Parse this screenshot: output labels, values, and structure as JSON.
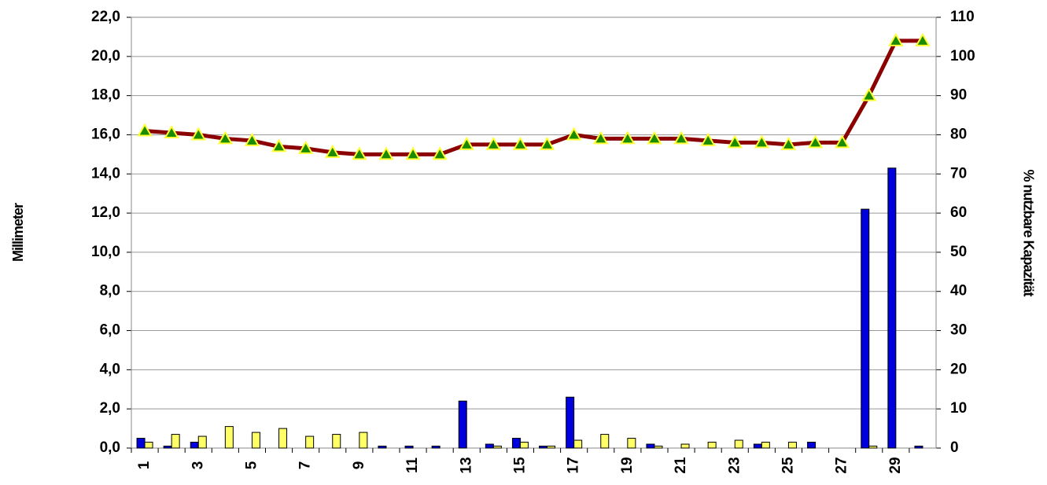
{
  "chart_data": {
    "type": "bar-line",
    "y_label": "Millimeter",
    "y2_label": "% nutzbare Kapazität",
    "categories": [
      "1",
      null,
      "3",
      null,
      "5",
      null,
      "7",
      null,
      "9",
      null,
      "11",
      null,
      "13",
      null,
      "15",
      null,
      "17",
      null,
      "19",
      null,
      "21",
      null,
      "23",
      null,
      "25",
      null,
      "27",
      null,
      "29",
      null
    ],
    "series": [
      {
        "color": "#0000dd",
        "values": [
          0.5,
          0.1,
          0.3,
          0,
          0,
          0,
          0,
          0,
          0,
          0.1,
          0.1,
          0.1,
          2.4,
          0.2,
          0.5,
          0.1,
          2.6,
          0,
          0,
          0.2,
          0,
          0,
          0,
          0.2,
          0,
          0.3,
          0,
          12.2,
          14.3,
          0.1
        ]
      },
      {
        "color": "#ffff66",
        "values": [
          0.3,
          0.7,
          0.6,
          1.1,
          0.8,
          1.0,
          0.6,
          0.7,
          0.8,
          0,
          0,
          0,
          0,
          0.1,
          0.3,
          0.1,
          0.4,
          0.7,
          0.5,
          0.1,
          0.2,
          0.3,
          0.4,
          0.3,
          0.3,
          0,
          0,
          0.1,
          0,
          0
        ]
      },
      {
        "color": "#8b0000",
        "marker_color": "#1a8a00",
        "axis": "y2",
        "values": [
          81,
          80.5,
          80,
          79,
          78.5,
          77,
          76.5,
          75.5,
          75,
          75,
          75,
          75,
          77.5,
          77.5,
          77.5,
          77.5,
          80,
          79,
          79,
          79,
          79,
          78.5,
          78,
          78,
          77.5,
          78,
          78,
          90,
          104,
          104
        ]
      }
    ],
    "ylim": [
      0,
      22
    ],
    "yticks": [
      {
        "value": 0,
        "label": "0,0"
      },
      {
        "value": 2,
        "label": "2,0"
      },
      {
        "value": 4,
        "label": "4,0"
      },
      {
        "value": 6,
        "label": "6,0"
      },
      {
        "value": 8,
        "label": "8,0"
      },
      {
        "value": 10,
        "label": "10,0"
      },
      {
        "value": 12,
        "label": "12,0"
      },
      {
        "value": 14,
        "label": "14,0"
      },
      {
        "value": 16,
        "label": "16,0"
      },
      {
        "value": 18,
        "label": "18,0"
      },
      {
        "value": 20,
        "label": "20,0"
      },
      {
        "value": 22,
        "label": "22,0"
      }
    ],
    "y2lim": [
      0,
      110
    ],
    "y2ticks": [
      0,
      10,
      20,
      30,
      40,
      50,
      60,
      70,
      80,
      90,
      100,
      110
    ],
    "grid": true
  }
}
